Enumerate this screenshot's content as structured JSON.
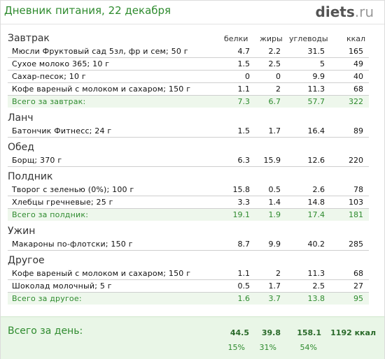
{
  "header": {
    "title": "Дневник питания, 22 декабря",
    "brand_main": "diets",
    "brand_tld": ".ru"
  },
  "columns": {
    "protein": "белки",
    "fat": "жиры",
    "carbs": "углеводы",
    "kcal": "ккал"
  },
  "sections": {
    "breakfast": {
      "title": "Завтрак",
      "items": [
        {
          "name": "Мюсли Фруктовый сад 5зл, фр и сем; 50 г",
          "protein": "4.7",
          "fat": "2.2",
          "carbs": "31.5",
          "kcal": "165"
        },
        {
          "name": "Сухое молоко 365; 10 г",
          "protein": "1.5",
          "fat": "2.5",
          "carbs": "5",
          "kcal": "49"
        },
        {
          "name": "Сахар-песок; 10 г",
          "protein": "0",
          "fat": "0",
          "carbs": "9.9",
          "kcal": "40"
        },
        {
          "name": "Кофе вареный с молоком и сахаром; 150 г",
          "protein": "1.1",
          "fat": "2",
          "carbs": "11.3",
          "kcal": "68"
        }
      ],
      "total": {
        "name": "Всего за завтрак:",
        "protein": "7.3",
        "fat": "6.7",
        "carbs": "57.7",
        "kcal": "322"
      }
    },
    "lunch": {
      "title": "Ланч",
      "items": [
        {
          "name": "Батончик Фитнесс; 24 г",
          "protein": "1.5",
          "fat": "1.7",
          "carbs": "16.4",
          "kcal": "89"
        }
      ]
    },
    "dinner": {
      "title": "Обед",
      "items": [
        {
          "name": "Борщ; 370 г",
          "protein": "6.3",
          "fat": "15.9",
          "carbs": "12.6",
          "kcal": "220"
        }
      ]
    },
    "snack": {
      "title": "Полдник",
      "items": [
        {
          "name": "Творог с зеленью (0%); 100 г",
          "protein": "15.8",
          "fat": "0.5",
          "carbs": "2.6",
          "kcal": "78"
        },
        {
          "name": "Хлебцы гречневые; 25 г",
          "protein": "3.3",
          "fat": "1.4",
          "carbs": "14.8",
          "kcal": "103"
        }
      ],
      "total": {
        "name": "Всего за полдник:",
        "protein": "19.1",
        "fat": "1.9",
        "carbs": "17.4",
        "kcal": "181"
      }
    },
    "supper": {
      "title": "Ужин",
      "items": [
        {
          "name": "Макароны по-флотски; 150 г",
          "protein": "8.7",
          "fat": "9.9",
          "carbs": "40.2",
          "kcal": "285"
        }
      ]
    },
    "other": {
      "title": "Другое",
      "items": [
        {
          "name": "Кофе вареный с молоком и сахаром; 150 г",
          "protein": "1.1",
          "fat": "2",
          "carbs": "11.3",
          "kcal": "68"
        },
        {
          "name": "Шоколад молочный; 5 г",
          "protein": "0.5",
          "fat": "1.7",
          "carbs": "2.5",
          "kcal": "27"
        }
      ],
      "total": {
        "name": "Всего за другое:",
        "protein": "1.6",
        "fat": "3.7",
        "carbs": "13.8",
        "kcal": "95"
      }
    }
  },
  "day_total": {
    "label": "Всего за день:",
    "protein": "44.5",
    "fat": "39.8",
    "carbs": "158.1",
    "kcal": "1192 ккал",
    "protein_pct": "15%",
    "fat_pct": "31%",
    "carbs_pct": "54%"
  },
  "colors": {
    "accent_green": "#2e8b2e",
    "total_bg": "#eef7ec",
    "day_bg": "#e9f6e7"
  }
}
